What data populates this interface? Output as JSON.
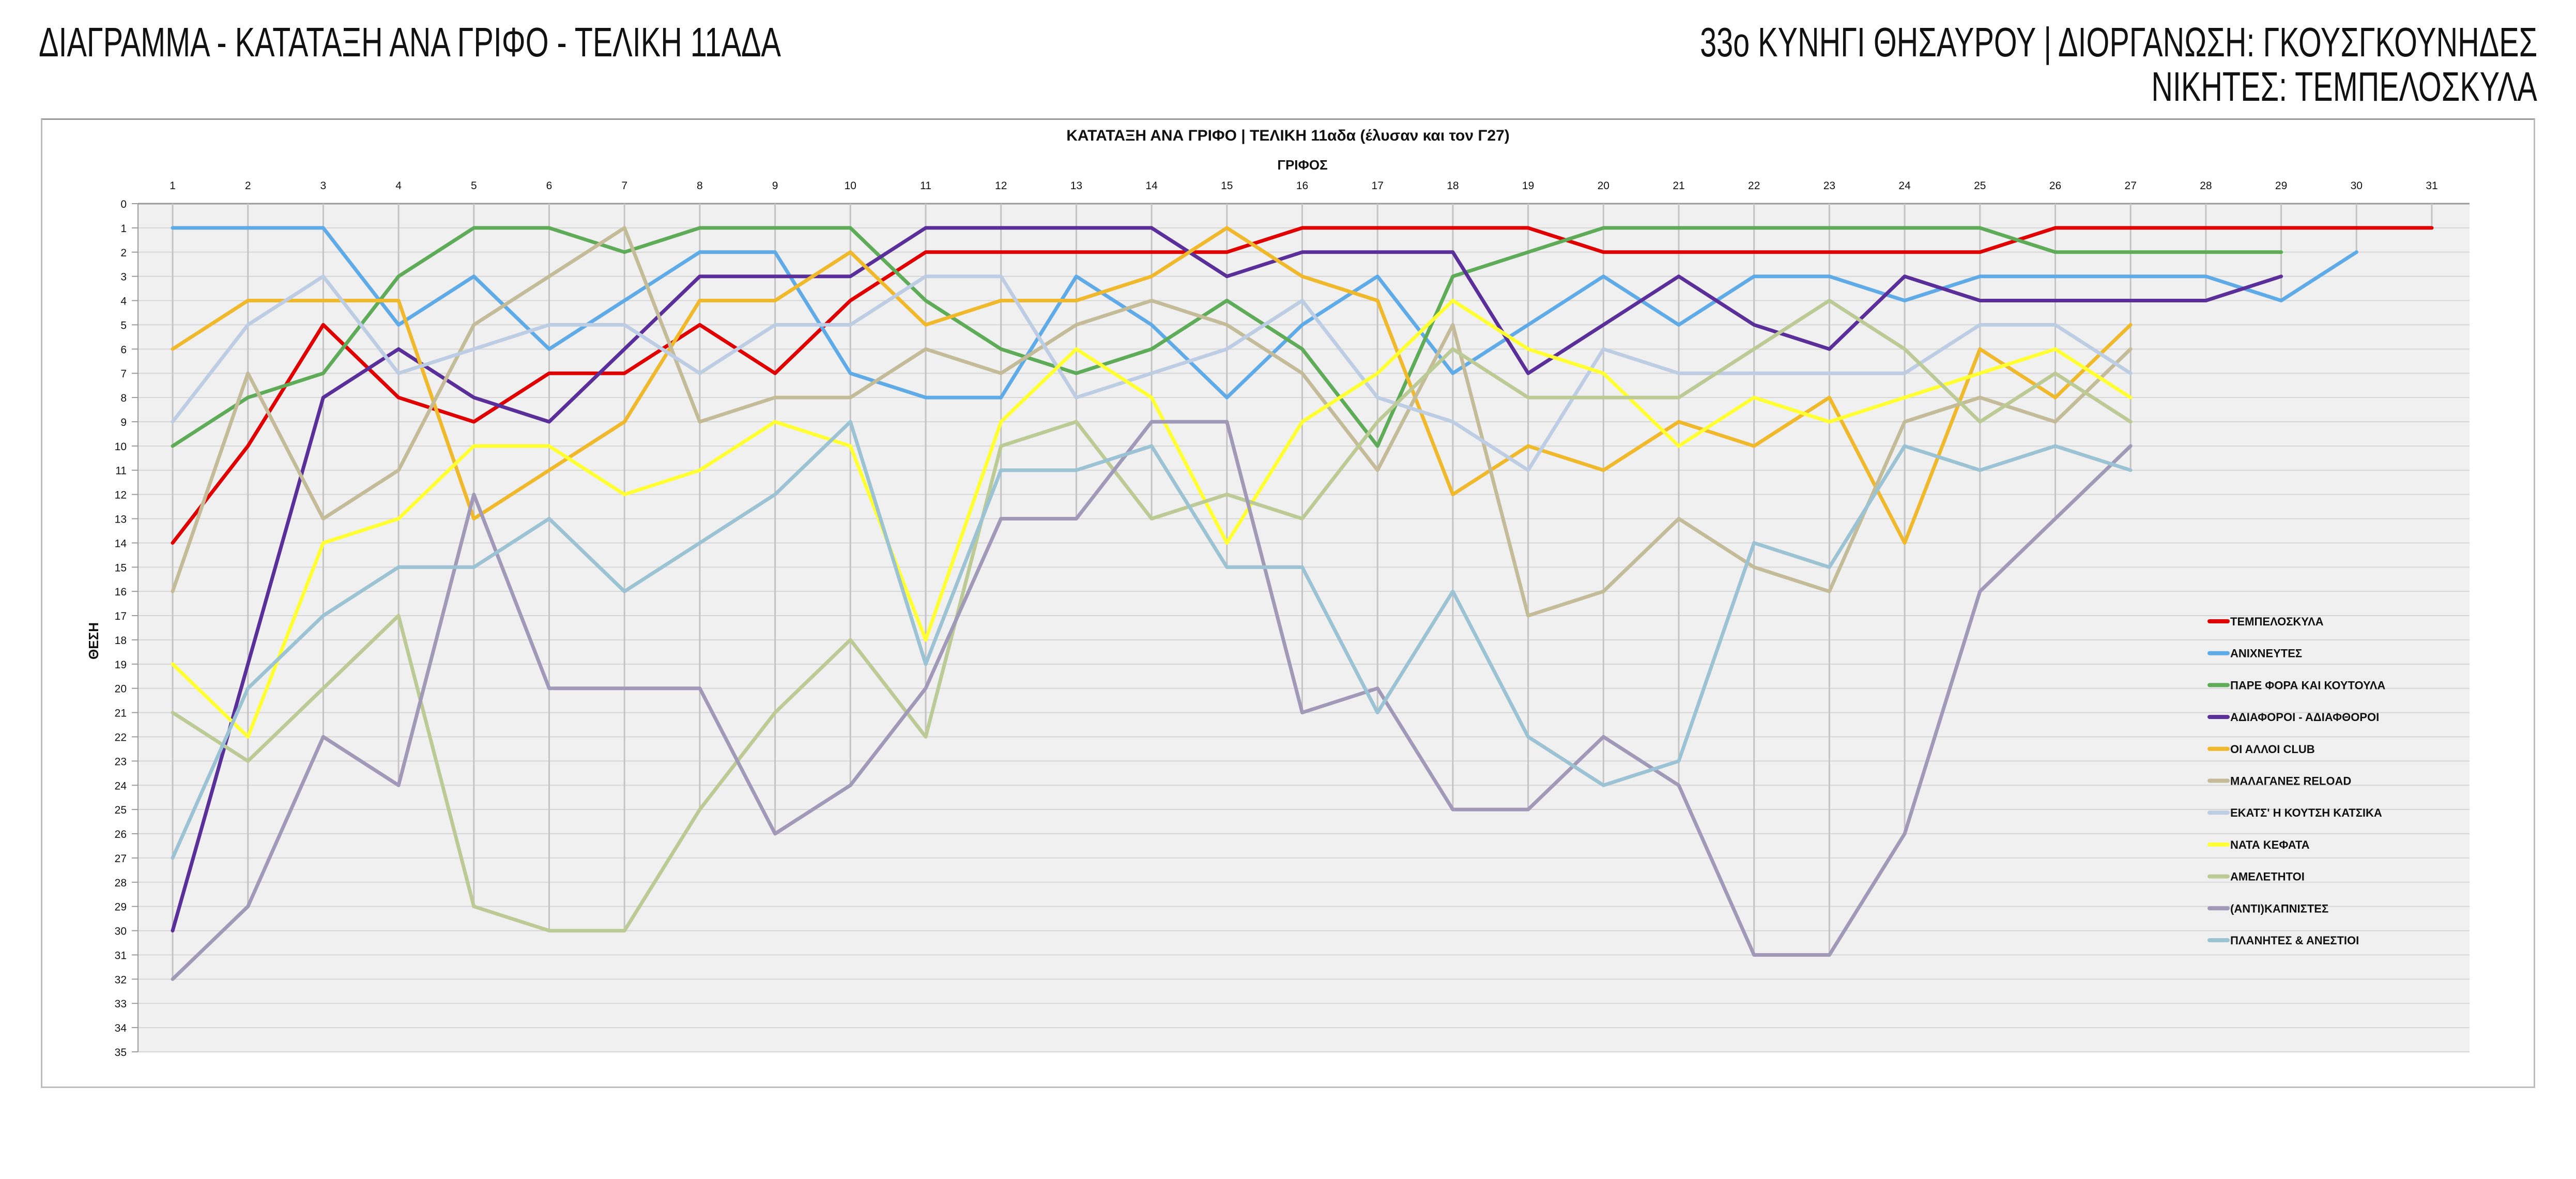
{
  "header": {
    "title_left": "ΔΙΑΓΡΑΜΜΑ - ΚΑΤΑΤΑΞΗ ΑΝΑ ΓΡΙΦΟ - ΤΕΛΙΚΗ 11ΑΔΑ",
    "title_right_line1": "33ο ΚΥΝΗΓΙ ΘΗΣΑΥΡΟΥ | ΔΙΟΡΓΑΝΩΣΗ: ΓΚΟΥΣΓΚΟΥΝΗΔΕΣ",
    "title_right_line2": "ΝΙΚΗΤΕΣ: ΤΕΜΠΕΛΟΣΚΥΛΑ"
  },
  "chart_data": {
    "type": "line",
    "title": "ΚΑΤΑΤΑΞΗ ΑΝΑ ΓΡΙΦΟ | ΤΕΛΙΚΗ 11αδα (έλυσαν και τον Γ27)",
    "xlabel": "ΓΡΙΦΟΣ",
    "ylabel": "ΘΕΣΗ",
    "x": [
      1,
      2,
      3,
      4,
      5,
      6,
      7,
      8,
      9,
      10,
      11,
      12,
      13,
      14,
      15,
      16,
      17,
      18,
      19,
      20,
      21,
      22,
      23,
      24,
      25,
      26,
      27,
      28,
      29,
      30,
      31
    ],
    "x_axis_position": "top",
    "ylim": [
      0,
      35
    ],
    "y_reversed": true,
    "y_ticks": [
      0,
      1,
      2,
      3,
      4,
      5,
      6,
      7,
      8,
      9,
      10,
      11,
      12,
      13,
      14,
      15,
      16,
      17,
      18,
      19,
      20,
      21,
      22,
      23,
      24,
      25,
      26,
      27,
      28,
      29,
      30,
      31,
      32,
      33,
      34,
      35
    ],
    "grid": true,
    "legend_position": "right",
    "series": [
      {
        "name": "ΤΕΜΠΕΛΟΣΚΥΛΑ",
        "color": "#e00000",
        "values": [
          14,
          10,
          5,
          8,
          9,
          7,
          7,
          5,
          7,
          4,
          2,
          2,
          2,
          2,
          2,
          1,
          1,
          1,
          1,
          2,
          2,
          2,
          2,
          2,
          2,
          1,
          1,
          1,
          1,
          1,
          1
        ]
      },
      {
        "name": "ΑΝΙΧΝΕΥΤΕΣ",
        "color": "#5fabe8",
        "values": [
          1,
          1,
          1,
          5,
          3,
          6,
          4,
          2,
          2,
          7,
          8,
          8,
          3,
          5,
          8,
          5,
          3,
          7,
          5,
          3,
          5,
          3,
          3,
          4,
          3,
          3,
          3,
          3,
          4,
          2,
          null
        ]
      },
      {
        "name": "ΠΑΡΕ ΦΟΡΑ ΚΑΙ ΚΟΥΤΟΥΛΑ",
        "color": "#5eab58",
        "values": [
          10,
          8,
          7,
          3,
          1,
          1,
          2,
          1,
          1,
          1,
          4,
          6,
          7,
          6,
          4,
          6,
          10,
          3,
          2,
          1,
          1,
          1,
          1,
          1,
          1,
          2,
          2,
          2,
          2,
          null,
          null
        ]
      },
      {
        "name": "ΑΔΙΑΦΟΡΟΙ - ΑΔΙΑΦΘΟΡΟΙ",
        "color": "#5b2f9a",
        "values": [
          30,
          19,
          8,
          6,
          8,
          9,
          6,
          3,
          3,
          3,
          1,
          1,
          1,
          1,
          3,
          2,
          2,
          2,
          7,
          5,
          3,
          5,
          6,
          3,
          4,
          4,
          4,
          4,
          3,
          null,
          null
        ]
      },
      {
        "name": "ΟΙ ΑΛΛΟΙ CLUB",
        "color": "#f0b92b",
        "values": [
          6,
          4,
          4,
          4,
          13,
          11,
          9,
          4,
          4,
          2,
          5,
          4,
          4,
          3,
          1,
          3,
          4,
          12,
          10,
          11,
          9,
          10,
          8,
          14,
          6,
          8,
          5,
          null,
          null,
          null,
          null
        ]
      },
      {
        "name": "ΜΑΛΑΓΑΝΕΣ RELOAD",
        "color": "#c4bc98",
        "values": [
          16,
          7,
          13,
          11,
          5,
          3,
          1,
          9,
          8,
          8,
          6,
          7,
          5,
          4,
          5,
          7,
          11,
          5,
          17,
          16,
          13,
          15,
          16,
          9,
          8,
          9,
          6,
          null,
          null,
          null,
          null
        ]
      },
      {
        "name": "ΕΚΑΤΣ' Η ΚΟΥΤΣΗ ΚΑΤΣΙΚΑ",
        "color": "#bccde4",
        "values": [
          9,
          5,
          3,
          7,
          6,
          5,
          5,
          7,
          5,
          5,
          3,
          3,
          8,
          7,
          6,
          4,
          8,
          9,
          11,
          6,
          7,
          7,
          7,
          7,
          5,
          5,
          7,
          null,
          null,
          null,
          null
        ]
      },
      {
        "name": "ΝΑΤΑ ΚΕΦΑΤΑ",
        "color": "#ffff33",
        "values": [
          19,
          22,
          14,
          13,
          10,
          10,
          12,
          11,
          9,
          10,
          18,
          9,
          6,
          8,
          14,
          9,
          7,
          4,
          6,
          7,
          10,
          8,
          9,
          8,
          7,
          6,
          8,
          null,
          null,
          null,
          null
        ]
      },
      {
        "name": "ΑΜΕΛΕΤΗΤΟΙ",
        "color": "#bccb95",
        "values": [
          21,
          23,
          20,
          17,
          29,
          30,
          30,
          25,
          21,
          18,
          22,
          10,
          9,
          13,
          12,
          13,
          9,
          6,
          8,
          8,
          8,
          6,
          4,
          6,
          9,
          7,
          9,
          null,
          null,
          null,
          null
        ]
      },
      {
        "name": "(ΑΝΤΙ)ΚΑΠΝΙΣΤΕΣ",
        "color": "#a09ab8",
        "values": [
          32,
          29,
          22,
          24,
          12,
          20,
          20,
          20,
          26,
          24,
          20,
          13,
          13,
          9,
          9,
          21,
          20,
          25,
          25,
          22,
          24,
          31,
          31,
          26,
          16,
          13,
          10,
          null,
          null,
          null,
          null
        ]
      },
      {
        "name": "ΠΛΑΝΗΤΕΣ & ΑΝΕΣΤΙΟΙ",
        "color": "#9cc3d3",
        "values": [
          27,
          20,
          17,
          15,
          15,
          13,
          16,
          14,
          12,
          9,
          19,
          11,
          11,
          10,
          15,
          15,
          21,
          16,
          22,
          24,
          23,
          14,
          15,
          10,
          11,
          10,
          11,
          null,
          null,
          null,
          null
        ]
      }
    ]
  }
}
